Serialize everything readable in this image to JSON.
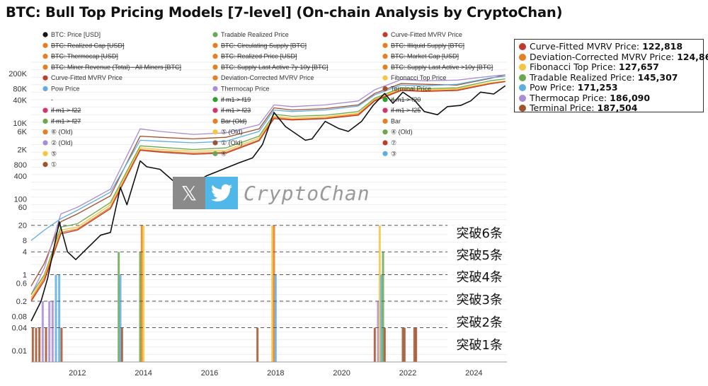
{
  "title": "BTC: Bull Top Pricing Models [7-level] (On-chain Analysis by CryptoChan)",
  "watermark": {
    "x_glyph": "𝕏",
    "text": "CryptoChan"
  },
  "legend": [
    {
      "label": "BTC: Price [USD]",
      "color": "#111111",
      "struck": false
    },
    {
      "label": "Tradable Realized Price",
      "color": "#6aa84f",
      "struck": false
    },
    {
      "label": "Curve-Fitted MVRV Price",
      "color": "#c0392b",
      "struck": false
    },
    {
      "label": "BTC: Realized Cap [USD]",
      "color": "#e67e22",
      "struck": true
    },
    {
      "label": "BTC: Circulating Supply [BTC]",
      "color": "#e67e22",
      "struck": true
    },
    {
      "label": "BTC: Illiquid Supply [BTC]",
      "color": "#e67e22",
      "struck": true
    },
    {
      "label": "BTC: Thermocap [USD]",
      "color": "#e67e22",
      "struck": true
    },
    {
      "label": "BTC: Realized Price [USD]",
      "color": "#e67e22",
      "struck": true
    },
    {
      "label": "BTC: Market Cap [USD]",
      "color": "#e67e22",
      "struck": true
    },
    {
      "label": "BTC: Miner Revenue (Total) - All Miners [BTC]",
      "color": "#e67e22",
      "struck": true
    },
    {
      "label": "BTC: Supply Last Active 7y-10y [BTC]",
      "color": "#e67e22",
      "struck": true
    },
    {
      "label": "BTC: Supply Last Active >10y [BTC]",
      "color": "#e67e22",
      "struck": true
    },
    {
      "label": "Curve-Fitted MVRV Price",
      "color": "#c0392b",
      "struck": false
    },
    {
      "label": "Deviation-Corrected MVRV Price",
      "color": "#e67e22",
      "struck": false
    },
    {
      "label": "Fibonacci Top Price",
      "color": "#f5c542",
      "struck": false
    },
    {
      "label": "Pow Price",
      "color": "#5dade2",
      "struck": false
    },
    {
      "label": "Thermocap Price",
      "color": "#a98bd6",
      "struck": false
    },
    {
      "label": "Terminal Price",
      "color": "#a0522d",
      "struck": false
    },
    {
      "label": "-",
      "color": "",
      "struck": false
    },
    {
      "label": "if m1 > f19",
      "color": "#2ca02c",
      "struck": true
    },
    {
      "label": "if m1 > f20",
      "color": "#2ca02c",
      "struck": true
    },
    {
      "label": "if m1 > f22",
      "color": "#d6336c",
      "struck": true
    },
    {
      "label": "if m1 > f23",
      "color": "#d6336c",
      "struck": true
    },
    {
      "label": "if m1 > f25",
      "color": "#d6336c",
      "struck": true
    },
    {
      "label": "if m1 > f27",
      "color": "#6aa84f",
      "struck": true
    },
    {
      "label": "Bar (Old)",
      "color": "#e67e22",
      "struck": true
    },
    {
      "label": "Bar",
      "color": "#e67e22",
      "struck": false
    },
    {
      "label": "⑥ (Old)",
      "color": "#e67e22",
      "struck": false
    },
    {
      "label": "⑤ (Old)",
      "color": "#f5c542",
      "struck": false
    },
    {
      "label": "④ (Old)",
      "color": "#6aa84f",
      "struck": false
    },
    {
      "label": "② (Old)",
      "color": "#a98bd6",
      "struck": false
    },
    {
      "label": "① (Old)",
      "color": "#a0522d",
      "struck": false
    },
    {
      "label": "⑦",
      "color": "#c0392b",
      "struck": false
    },
    {
      "label": "⑤",
      "color": "#f5c542",
      "struck": false
    },
    {
      "label": "④",
      "color": "#6aa84f",
      "struck": false
    },
    {
      "label": "③",
      "color": "#5dade2",
      "struck": false
    },
    {
      "label": "①",
      "color": "#a0522d",
      "struck": false
    }
  ],
  "tooltip": [
    {
      "label": "Curve-Fitted MVRV Price:",
      "value": "122,818",
      "color": "#c0392b"
    },
    {
      "label": "Deviation-Corrected MVRV Price:",
      "value": "124,860",
      "color": "#e67e22"
    },
    {
      "label": "Fibonacci Top Price:",
      "value": "127,657",
      "color": "#f5c542"
    },
    {
      "label": "Tradable Realized Price:",
      "value": "145,307",
      "color": "#6aa84f"
    },
    {
      "label": "Pow Price:",
      "value": "171,253",
      "color": "#5dade2"
    },
    {
      "label": "Thermocap Price:",
      "value": "186,090",
      "color": "#a98bd6"
    },
    {
      "label": "Terminal Price:",
      "value": "187,504",
      "color": "#a0522d"
    }
  ],
  "level_labels": [
    "突破6条",
    "突破5条",
    "突破4条",
    "突破3条",
    "突破2条",
    "突破1条"
  ],
  "chart_data": {
    "type": "line",
    "y_scale": "log",
    "ylim": [
      0.005,
      400000
    ],
    "xlim": [
      2010.6,
      2025.0
    ],
    "y_ticks": [
      "200K",
      "80K",
      "40K",
      "10K",
      "6K",
      "2K",
      "800",
      "400",
      "100",
      "60",
      "20",
      "8",
      "4",
      "1",
      "0.6",
      "0.2",
      "0.08",
      "0.04",
      "0.01"
    ],
    "y_tick_values": [
      200000,
      80000,
      40000,
      10000,
      6000,
      2000,
      800,
      400,
      100,
      60,
      20,
      8,
      4,
      1,
      0.6,
      0.2,
      0.08,
      0.04,
      0.01
    ],
    "x_ticks": [
      "2012",
      "2014",
      "2016",
      "2018",
      "2020",
      "2022",
      "2024"
    ],
    "x_tick_values": [
      2012,
      2014,
      2016,
      2018,
      2020,
      2022,
      2024
    ],
    "level_thresholds": [
      20,
      4,
      1,
      0.2,
      0.04
    ],
    "series": [
      {
        "name": "BTC: Price [USD]",
        "color": "#111111",
        "x": [
          2010.6,
          2010.9,
          2011.1,
          2011.45,
          2011.7,
          2011.95,
          2012.3,
          2012.7,
          2013.0,
          2013.3,
          2013.5,
          2013.9,
          2014.1,
          2014.5,
          2015.0,
          2015.5,
          2015.9,
          2016.5,
          2016.9,
          2017.3,
          2017.6,
          2017.95,
          2018.3,
          2018.9,
          2019.1,
          2019.5,
          2019.9,
          2020.2,
          2020.6,
          2020.95,
          2021.3,
          2021.55,
          2021.85,
          2022.2,
          2022.5,
          2022.9,
          2023.2,
          2023.6,
          2023.9,
          2024.2,
          2024.6,
          2024.95
        ],
        "y": [
          0.06,
          0.2,
          0.8,
          25,
          4,
          2.5,
          5,
          11,
          13,
          200,
          70,
          1000,
          700,
          600,
          250,
          250,
          400,
          650,
          900,
          1200,
          2700,
          19000,
          8000,
          3500,
          3800,
          11000,
          7200,
          6000,
          11000,
          29000,
          60000,
          33000,
          65000,
          40000,
          20000,
          16500,
          27000,
          29000,
          38000,
          65000,
          58000,
          96000
        ]
      },
      {
        "name": "Terminal Price",
        "color": "#a0522d",
        "x": [
          2010.6,
          2011.0,
          2011.5,
          2012.0,
          2013.0,
          2013.9,
          2014.5,
          2015.5,
          2016.5,
          2017.5,
          2017.95,
          2018.5,
          2019.5,
          2020.5,
          2021.0,
          2021.8,
          2022.5,
          2023.5,
          2024.5,
          2024.95
        ],
        "y": [
          0.5,
          2,
          25,
          40,
          120,
          4500,
          4200,
          3800,
          4200,
          7000,
          25000,
          22000,
          24000,
          30000,
          60000,
          110000,
          105000,
          100000,
          150000,
          187504
        ]
      },
      {
        "name": "Thermocap Price",
        "color": "#a98bd6",
        "x": [
          2010.6,
          2011.0,
          2011.5,
          2012.0,
          2013.0,
          2013.9,
          2014.5,
          2015.5,
          2016.5,
          2017.5,
          2017.95,
          2018.5,
          2019.5,
          2020.5,
          2021.0,
          2021.8,
          2022.5,
          2023.5,
          2024.5,
          2024.95
        ],
        "y": [
          0.3,
          1.5,
          40,
          60,
          180,
          7000,
          6000,
          5000,
          5500,
          9000,
          30000,
          27000,
          30000,
          38000,
          75000,
          140000,
          130000,
          135000,
          170000,
          186090
        ]
      },
      {
        "name": "Pow Price",
        "color": "#5dade2",
        "x": [
          2010.6,
          2011.0,
          2011.5,
          2012.0,
          2013.0,
          2013.9,
          2014.5,
          2015.5,
          2016.5,
          2017.5,
          2017.95,
          2018.5,
          2019.5,
          2020.5,
          2021.0,
          2021.8,
          2022.5,
          2023.5,
          2024.5,
          2024.95
        ],
        "y": [
          8,
          15,
          30,
          50,
          150,
          3500,
          3300,
          3000,
          3300,
          6000,
          22000,
          20000,
          22000,
          28000,
          55000,
          100000,
          95000,
          105000,
          155000,
          171253
        ]
      },
      {
        "name": "Tradable Realized Price",
        "color": "#6aa84f",
        "x": [
          2010.6,
          2011.0,
          2011.5,
          2012.0,
          2013.0,
          2013.9,
          2014.5,
          2015.5,
          2016.5,
          2017.5,
          2017.95,
          2018.5,
          2019.5,
          2020.5,
          2021.0,
          2021.8,
          2022.5,
          2023.5,
          2024.5,
          2024.95
        ],
        "y": [
          0.3,
          1,
          18,
          22,
          80,
          2500,
          2300,
          2000,
          2200,
          4500,
          17000,
          15000,
          16000,
          20000,
          45000,
          85000,
          80000,
          85000,
          130000,
          145307
        ]
      },
      {
        "name": "Fibonacci Top Price",
        "color": "#f5c542",
        "x": [
          2010.6,
          2011.0,
          2011.5,
          2012.0,
          2013.0,
          2013.9,
          2014.5,
          2015.5,
          2016.5,
          2017.5,
          2017.95,
          2018.5,
          2019.5,
          2020.5,
          2021.0,
          2021.8,
          2022.5,
          2023.5,
          2024.5,
          2024.95
        ],
        "y": [
          0.25,
          0.9,
          15,
          18,
          70,
          2200,
          2000,
          1800,
          1900,
          4000,
          15000,
          13500,
          14500,
          18000,
          42000,
          80000,
          75000,
          80000,
          115000,
          127657
        ]
      },
      {
        "name": "Deviation-Corrected MVRV Price",
        "color": "#e67e22",
        "x": [
          2010.6,
          2011.0,
          2011.5,
          2012.0,
          2013.0,
          2013.9,
          2014.5,
          2015.5,
          2016.5,
          2017.5,
          2017.95,
          2018.5,
          2019.5,
          2020.5,
          2021.0,
          2021.8,
          2022.5,
          2023.5,
          2024.5,
          2024.95
        ],
        "y": [
          0.22,
          0.8,
          13,
          16,
          60,
          2000,
          1800,
          1600,
          1700,
          3600,
          14000,
          12500,
          13500,
          17000,
          40000,
          75000,
          70000,
          75000,
          110000,
          124860
        ]
      },
      {
        "name": "Curve-Fitted MVRV Price",
        "color": "#c0392b",
        "x": [
          2010.6,
          2011.0,
          2011.5,
          2012.0,
          2013.0,
          2013.9,
          2014.5,
          2015.5,
          2016.5,
          2017.5,
          2017.95,
          2018.5,
          2019.5,
          2020.5,
          2021.0,
          2021.8,
          2022.5,
          2023.5,
          2024.5,
          2024.95
        ],
        "y": [
          0.2,
          0.7,
          12,
          15,
          55,
          1900,
          1700,
          1500,
          1600,
          3400,
          13000,
          12000,
          13000,
          16000,
          38000,
          72000,
          68000,
          72000,
          108000,
          122818
        ]
      }
    ],
    "level_bars": {
      "colors": {
        "1": "#a0522d",
        "2": "#a98bd6",
        "3": "#5dade2",
        "4": "#6aa84f",
        "5": "#f5c542",
        "6": "#e67e22"
      },
      "bars": [
        {
          "x": 2010.65,
          "level": 1
        },
        {
          "x": 2010.75,
          "level": 1
        },
        {
          "x": 2010.85,
          "level": 1
        },
        {
          "x": 2010.95,
          "level": 2
        },
        {
          "x": 2011.05,
          "level": 1
        },
        {
          "x": 2011.15,
          "level": 2
        },
        {
          "x": 2011.25,
          "level": 2
        },
        {
          "x": 2011.35,
          "level": 3
        },
        {
          "x": 2011.45,
          "level": 3
        },
        {
          "x": 2011.52,
          "level": 1
        },
        {
          "x": 2013.25,
          "level": 4
        },
        {
          "x": 2013.3,
          "level": 3
        },
        {
          "x": 2013.35,
          "level": 1
        },
        {
          "x": 2013.9,
          "level": 4
        },
        {
          "x": 2013.95,
          "level": 6
        },
        {
          "x": 2014.0,
          "level": 5
        },
        {
          "x": 2017.45,
          "level": 1
        },
        {
          "x": 2017.9,
          "level": 5
        },
        {
          "x": 2017.95,
          "level": 6
        },
        {
          "x": 2018.0,
          "level": 3
        },
        {
          "x": 2021.0,
          "level": 1
        },
        {
          "x": 2021.1,
          "level": 2
        },
        {
          "x": 2021.15,
          "level": 5
        },
        {
          "x": 2021.2,
          "level": 3
        },
        {
          "x": 2021.25,
          "level": 4
        },
        {
          "x": 2021.3,
          "level": 1
        },
        {
          "x": 2021.85,
          "level": 1
        },
        {
          "x": 2021.9,
          "level": 1
        },
        {
          "x": 2022.2,
          "level": 1
        },
        {
          "x": 2022.25,
          "level": 1
        }
      ]
    }
  }
}
